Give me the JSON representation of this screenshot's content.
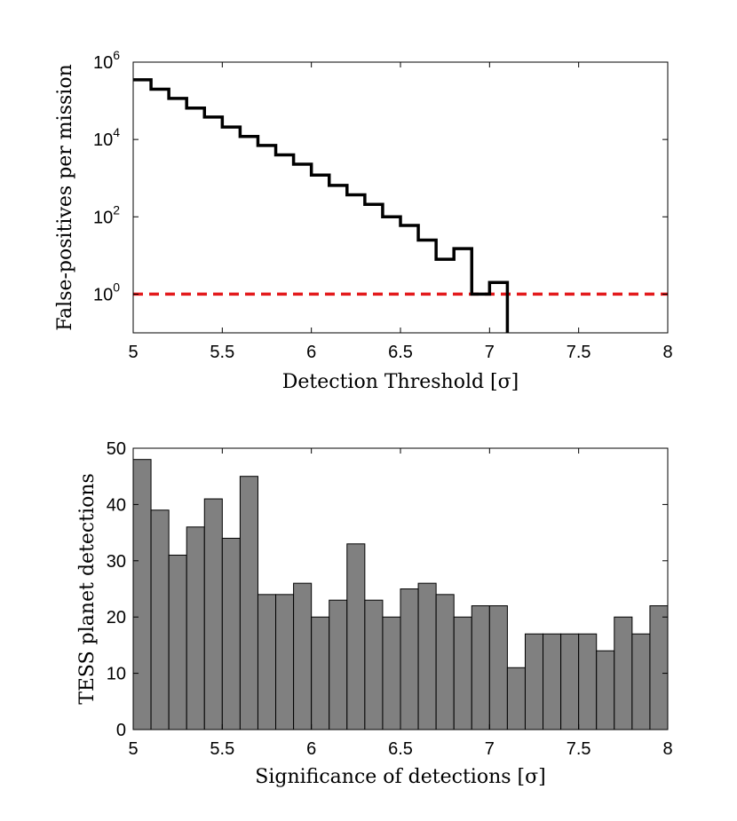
{
  "chart_data": [
    {
      "type": "line",
      "step": true,
      "xlabel": "Detection Threshold [σ]",
      "ylabel": "False-positives per mission",
      "xlim": [
        5,
        8
      ],
      "yscale": "log",
      "ylim": [
        0.1,
        1000000
      ],
      "xticks": [
        "5",
        "5.5",
        "6",
        "6.5",
        "7",
        "7.5",
        "8"
      ],
      "yticks": [
        {
          "value": 1,
          "base": "10",
          "exp": "0"
        },
        {
          "value": 100,
          "base": "10",
          "exp": "2"
        },
        {
          "value": 10000,
          "base": "10",
          "exp": "4"
        },
        {
          "value": 1000000,
          "base": "10",
          "exp": "6"
        }
      ],
      "series": [
        {
          "color": "#000000",
          "bin_width": 0.1,
          "x": [
            5.0,
            5.1,
            5.2,
            5.3,
            5.4,
            5.5,
            5.6,
            5.7,
            5.8,
            5.9,
            6.0,
            6.1,
            6.2,
            6.3,
            6.4,
            6.5,
            6.6,
            6.7,
            6.8,
            6.9,
            7.0
          ],
          "values": [
            350000,
            200000,
            115000,
            65000,
            38000,
            21000,
            12000,
            7000,
            4000,
            2300,
            1200,
            650,
            370,
            210,
            100,
            60,
            25,
            8,
            15,
            1,
            2
          ]
        }
      ],
      "reference_line": {
        "y": 1,
        "color": "#e31a1c",
        "style": "dashed"
      },
      "grid": false
    },
    {
      "type": "bar",
      "xlabel": "Significance of detections [σ]",
      "ylabel": "TESS planet detections",
      "xlim": [
        5,
        8
      ],
      "ylim": [
        0,
        50
      ],
      "xticks": [
        "5",
        "5.5",
        "6",
        "6.5",
        "7",
        "7.5",
        "8"
      ],
      "yticks": [
        "0",
        "10",
        "20",
        "30",
        "40",
        "50"
      ],
      "bin_width": 0.1,
      "bin_starts": [
        5.0,
        5.1,
        5.2,
        5.3,
        5.4,
        5.5,
        5.6,
        5.7,
        5.8,
        5.9,
        6.0,
        6.1,
        6.2,
        6.3,
        6.4,
        6.5,
        6.6,
        6.7,
        6.8,
        6.9,
        7.0,
        7.1,
        7.2,
        7.3,
        7.4,
        7.5,
        7.6,
        7.7,
        7.8,
        7.9
      ],
      "values": [
        48,
        39,
        31,
        36,
        41,
        34,
        45,
        24,
        24,
        26,
        20,
        23,
        33,
        23,
        20,
        25,
        26,
        24,
        20,
        22,
        22,
        11,
        17,
        17,
        17,
        17,
        14,
        20,
        17,
        22
      ],
      "bar_color": "#808080",
      "edge_color": "#000000",
      "grid": false
    }
  ]
}
